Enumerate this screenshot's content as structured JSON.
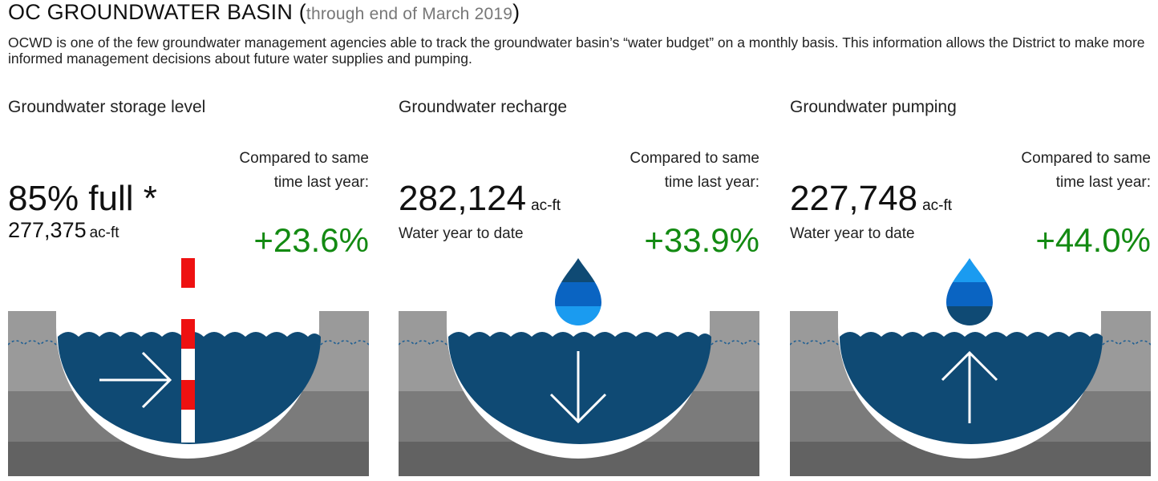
{
  "header": {
    "title_main": "OC GROUNDWATER BASIN",
    "title_paren_open": "(",
    "title_sub": "through end of March 2019",
    "title_paren_close": ")",
    "intro": "OCWD is one of the few groundwater management agencies able to track the groundwater basin’s “water budget” on a monthly basis. This information allows the District to make more informed management decisions about future water supplies and pumping."
  },
  "panels": [
    {
      "label": "Groundwater storage level",
      "big_value": "85% full *",
      "small_value": "277,375",
      "small_unit": "ac-ft",
      "compare_text": "Compared to same time last year:",
      "change": "+23.6%",
      "icon": "arrow-right-icon"
    },
    {
      "label": "Groundwater recharge",
      "big_value": "282,124",
      "big_unit": "ac-ft",
      "note": "Water year to date",
      "compare_text": "Compared to same time last year:",
      "change": "+33.9%",
      "icon": "arrow-down-icon"
    },
    {
      "label": "Groundwater pumping",
      "big_value": "227,748",
      "big_unit": "ac-ft",
      "note": "Water year to date",
      "compare_text": "Compared to same time last year:",
      "change": "+44.0%",
      "icon": "arrow-up-icon"
    }
  ],
  "colors": {
    "water": "#0f4a74",
    "water_mid": "#0a64c2",
    "water_light": "#1a9bf0",
    "ground_top": "#9a9a9a",
    "ground_mid": "#7b7b7b",
    "ground_bottom": "#626262",
    "positive": "#138a12",
    "gauge_red": "#ee1111"
  }
}
